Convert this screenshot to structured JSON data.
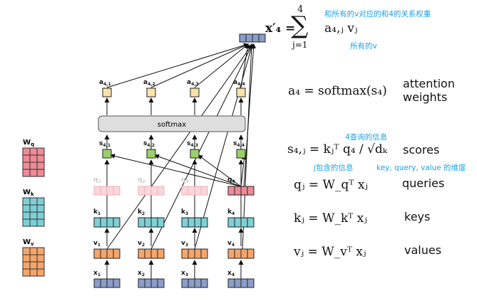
{
  "equations": {
    "output_lhs": "x′₄ =",
    "output_sum": "∑",
    "output_sum_top": "4",
    "output_sum_bottom": "j=1",
    "output_rhs": "a₄,ⱼ vⱼ",
    "attention_lhs": "a₄ = softmax(s₄)",
    "attention_label_1": "attention",
    "attention_label_2": "weights",
    "score_lhs": "s₄,ⱼ = kⱼᵀ q₄ / √dₖ",
    "score_label": "scores",
    "query_eq": "qⱼ = W_qᵀ xⱼ",
    "query_label": "queries",
    "key_eq": "kⱼ = W_kᵀ xⱼ",
    "key_label": "keys",
    "value_eq": "vⱼ = W_vᵀ xⱼ",
    "value_label": "values"
  },
  "notes": {
    "sum_note": "和所有的v对应的和4的关系权重",
    "v_note": "所有的v",
    "q4_note": "4查询的信息",
    "kj_note": "j包含的信息",
    "dims_note": "key, query, value 的维度"
  },
  "diagram": {
    "softmax_label": "softmax",
    "matrices": [
      {
        "label": "W",
        "sub": "q",
        "color": "#f08a96"
      },
      {
        "label": "W",
        "sub": "k",
        "color": "#7fcfd6"
      },
      {
        "label": "W",
        "sub": "v",
        "color": "#f5a66a"
      }
    ],
    "attention_labels": [
      "a4,1",
      "a4,2",
      "a4,3",
      "a4,4"
    ],
    "score_labels": [
      "s4,1",
      "s4,2",
      "s4,3",
      "s4,4"
    ],
    "query_labels": [
      "q1",
      "q2",
      "q3",
      "q4"
    ],
    "key_labels": [
      "k1",
      "k2",
      "k3",
      "k4"
    ],
    "value_labels": [
      "v1",
      "v2",
      "v3",
      "v4"
    ],
    "input_labels": [
      "x1",
      "x2",
      "x3",
      "x4"
    ],
    "colors": {
      "output": "#8b9dc9",
      "attention": "#fbe3a8",
      "score": "#9ccf6a",
      "query": "#f08a96",
      "query_faded": "#fbd6da",
      "key": "#7fcfd6",
      "value": "#f5a66a",
      "input": "#8b9dc9",
      "softmax": "#dedede",
      "note": "#1aa3e8"
    }
  }
}
